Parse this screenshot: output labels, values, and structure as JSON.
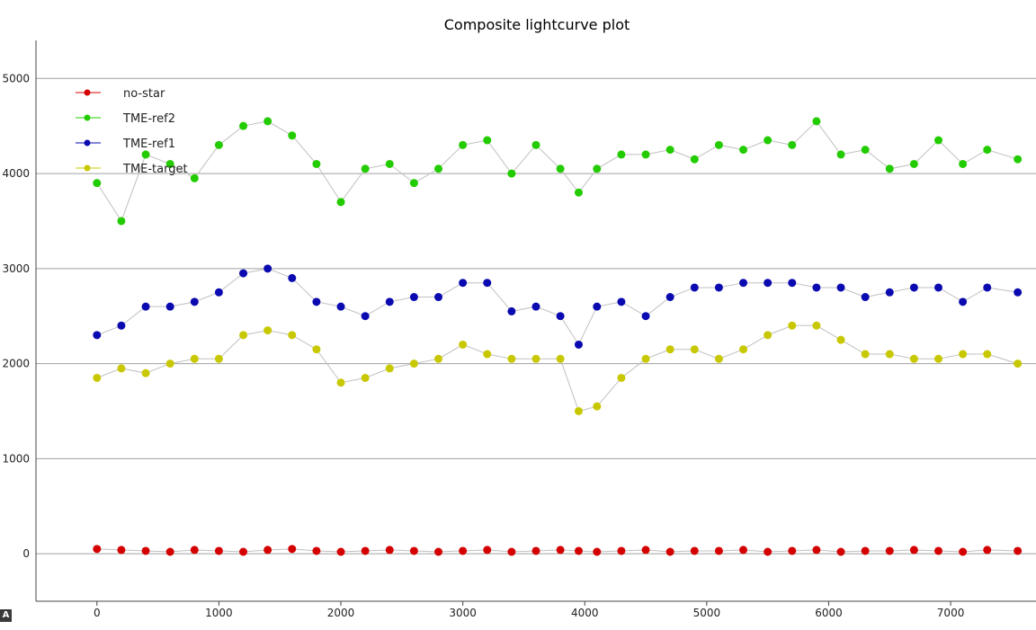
{
  "chart_data": {
    "type": "scatter",
    "title": "Composite lightcurve plot",
    "xlabel": "",
    "ylabel": "",
    "xlim": [
      -500,
      7700
    ],
    "ylim": [
      -500,
      5400
    ],
    "x_ticks": [
      "0",
      "1000",
      "2000",
      "3000",
      "4000",
      "5000",
      "6000",
      "7000"
    ],
    "y_ticks": [
      "0",
      "1000",
      "2000",
      "3000",
      "4000",
      "5000"
    ],
    "grid": "horizontal",
    "legend_position": "top-left",
    "colors": {
      "no-star": "#d40000",
      "TME-ref2": "#22cc00",
      "TME-ref1": "#0a0ab0",
      "TME-target": "#c8c800",
      "connect_line": "#c0c0c0"
    },
    "series": [
      {
        "name": "TME-target",
        "x": [
          0,
          200,
          400,
          600,
          800,
          1000,
          1200,
          1400,
          1600,
          1800,
          2000,
          2200,
          2400,
          2600,
          2800,
          3000,
          3200,
          3400,
          3600,
          3800,
          3950,
          4100,
          4300,
          4500,
          4700,
          4900,
          5100,
          5300,
          5500,
          5700,
          5900,
          6100,
          6300,
          6500,
          6700,
          6900,
          7100,
          7300,
          7550
        ],
        "values": [
          1850,
          1950,
          1900,
          2000,
          2050,
          2050,
          2300,
          2350,
          2300,
          2150,
          1800,
          1850,
          1950,
          2000,
          2050,
          2200,
          2100,
          2050,
          2050,
          2050,
          1500,
          1550,
          1850,
          2050,
          2150,
          2150,
          2050,
          2150,
          2300,
          2400,
          2400,
          2250,
          2100,
          2100,
          2050,
          2050,
          2100,
          2100,
          2000
        ]
      },
      {
        "name": "TME-ref1",
        "x": [
          0,
          200,
          400,
          600,
          800,
          1000,
          1200,
          1400,
          1600,
          1800,
          2000,
          2200,
          2400,
          2600,
          2800,
          3000,
          3200,
          3400,
          3600,
          3800,
          3950,
          4100,
          4300,
          4500,
          4700,
          4900,
          5100,
          5300,
          5500,
          5700,
          5900,
          6100,
          6300,
          6500,
          6700,
          6900,
          7100,
          7300,
          7550
        ],
        "values": [
          2300,
          2400,
          2600,
          2600,
          2650,
          2750,
          2950,
          3000,
          2900,
          2650,
          2600,
          2500,
          2650,
          2700,
          2700,
          2850,
          2850,
          2550,
          2600,
          2500,
          2200,
          2600,
          2650,
          2500,
          2700,
          2800,
          2800,
          2850,
          2850,
          2850,
          2800,
          2800,
          2700,
          2750,
          2800,
          2800,
          2650,
          2800,
          2750
        ]
      },
      {
        "name": "TME-ref2",
        "x": [
          0,
          200,
          400,
          600,
          800,
          1000,
          1200,
          1400,
          1600,
          1800,
          2000,
          2200,
          2400,
          2600,
          2800,
          3000,
          3200,
          3400,
          3600,
          3800,
          3950,
          4100,
          4300,
          4500,
          4700,
          4900,
          5100,
          5300,
          5500,
          5700,
          5900,
          6100,
          6300,
          6500,
          6700,
          6900,
          7100,
          7300,
          7550
        ],
        "values": [
          3900,
          3500,
          4200,
          4100,
          3950,
          4300,
          4500,
          4550,
          4400,
          4100,
          3700,
          4050,
          4100,
          3900,
          4050,
          4300,
          4350,
          4000,
          4300,
          4050,
          3800,
          4050,
          4200,
          4200,
          4250,
          4150,
          4300,
          4250,
          4350,
          4300,
          4550,
          4200,
          4250,
          4050,
          4100,
          4350,
          4100,
          4250,
          4150
        ]
      },
      {
        "name": "no-star",
        "x": [
          0,
          200,
          400,
          600,
          800,
          1000,
          1200,
          1400,
          1600,
          1800,
          2000,
          2200,
          2400,
          2600,
          2800,
          3000,
          3200,
          3400,
          3600,
          3800,
          3950,
          4100,
          4300,
          4500,
          4700,
          4900,
          5100,
          5300,
          5500,
          5700,
          5900,
          6100,
          6300,
          6500,
          6700,
          6900,
          7100,
          7300,
          7550
        ],
        "values": [
          50,
          40,
          30,
          20,
          40,
          30,
          20,
          40,
          50,
          30,
          20,
          30,
          40,
          30,
          20,
          30,
          40,
          20,
          30,
          40,
          30,
          20,
          30,
          40,
          20,
          30,
          30,
          40,
          20,
          30,
          40,
          20,
          30,
          30,
          40,
          30,
          20,
          40,
          30
        ]
      }
    ],
    "legend": [
      "no-star",
      "TME-ref2",
      "TME-ref1",
      "TME-target"
    ]
  },
  "corner_badge": "A"
}
